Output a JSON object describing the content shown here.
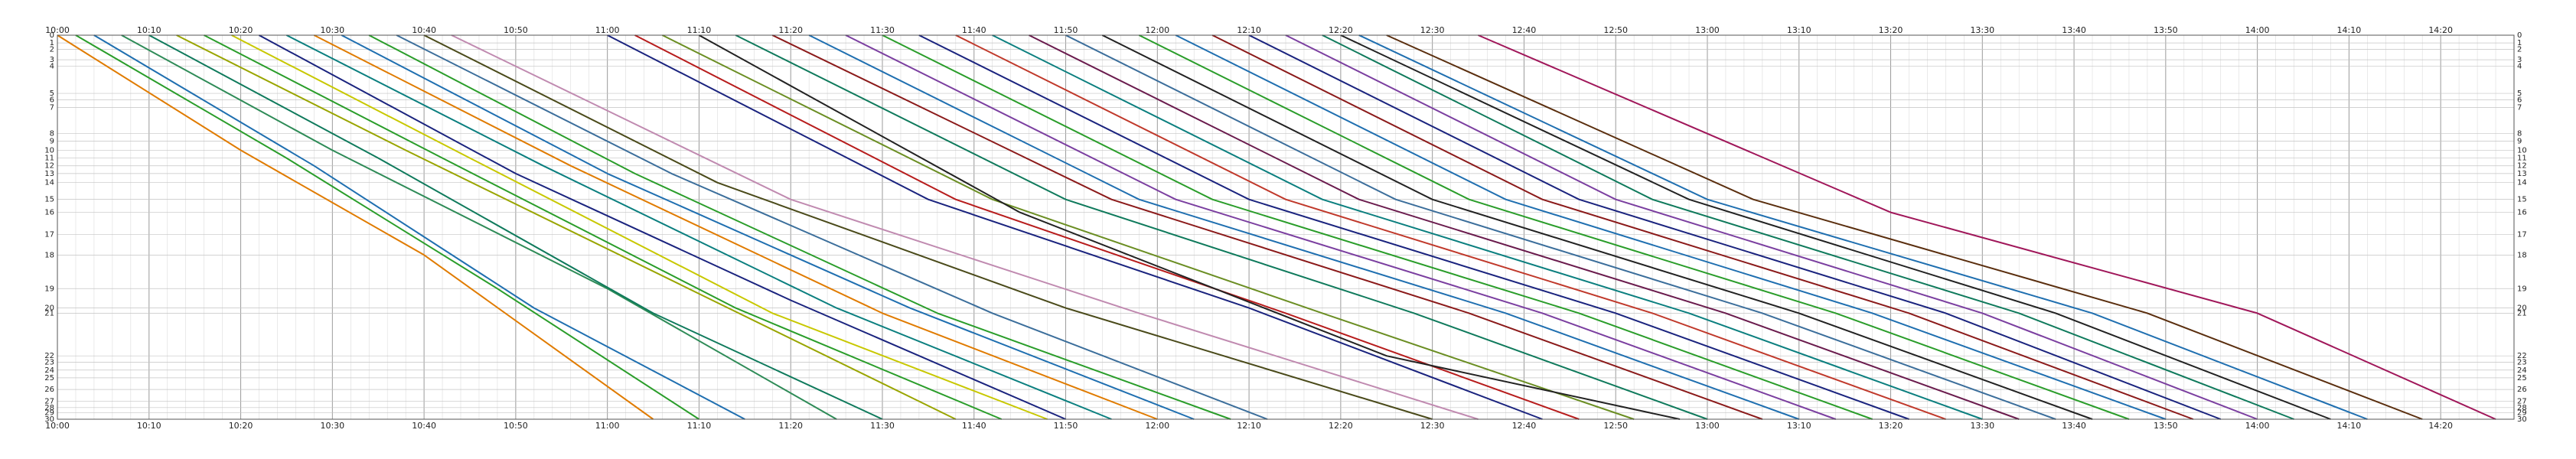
{
  "chart_data": {
    "type": "line",
    "title": "",
    "xlabel": "",
    "ylabel": "",
    "x_axis": {
      "kind": "time",
      "start": "10:00",
      "end": "14:28",
      "tick_labels": [
        "10:00",
        "10:10",
        "10:20",
        "10:30",
        "10:40",
        "10:50",
        "11:00",
        "11:10",
        "11:20",
        "11:30",
        "11:40",
        "11:50",
        "12:00",
        "12:10",
        "12:20",
        "12:30",
        "12:40",
        "12:50",
        "13:00",
        "13:10",
        "13:20",
        "13:30",
        "13:40",
        "13:50",
        "14:00",
        "14:10",
        "14:20"
      ],
      "minor_grid_minutes": 2
    },
    "y_axis": {
      "kind": "station",
      "start_km": 0,
      "end_km": 29.7,
      "inverted": true,
      "station_numbers": [
        0,
        1,
        2,
        3,
        4,
        5,
        6,
        7,
        8,
        9,
        10,
        11,
        12,
        13,
        14,
        15,
        16,
        17,
        18,
        19,
        20,
        21,
        22,
        23,
        24,
        25,
        26,
        27,
        28,
        29,
        30
      ],
      "station_km": [
        0,
        0.6,
        1.1,
        1.9,
        2.4,
        4.5,
        5.0,
        5.6,
        7.6,
        8.2,
        8.9,
        9.5,
        10.1,
        10.7,
        11.4,
        12.7,
        13.7,
        15.4,
        17.0,
        19.6,
        21.1,
        21.5,
        24.8,
        25.3,
        25.9,
        26.5,
        27.4,
        28.3,
        28.8,
        29.2,
        29.7
      ]
    },
    "grid": true,
    "legend": "none",
    "series": [
      {
        "color": "#e07b00",
        "points": [
          [
            "10:00",
            0
          ],
          [
            "10:20",
            8.9
          ],
          [
            "10:40",
            17.0
          ],
          [
            "11:05",
            29.7
          ]
        ]
      },
      {
        "color": "#2a9d2a",
        "points": [
          [
            "10:02",
            0
          ],
          [
            "10:25",
            9.5
          ],
          [
            "10:48",
            19.6
          ],
          [
            "11:10",
            29.7
          ]
        ]
      },
      {
        "color": "#1f6fb0",
        "points": [
          [
            "10:04",
            0
          ],
          [
            "10:28",
            10.1
          ],
          [
            "10:52",
            21.1
          ],
          [
            "11:15",
            29.7
          ]
        ]
      },
      {
        "color": "#2e8b57",
        "points": [
          [
            "10:07",
            0
          ],
          [
            "10:30",
            8.9
          ],
          [
            "11:00",
            19.6
          ],
          [
            "11:25",
            29.7
          ]
        ]
      },
      {
        "color": "#0f7a5c",
        "points": [
          [
            "10:10",
            0
          ],
          [
            "10:35",
            9.5
          ],
          [
            "11:05",
            21.5
          ],
          [
            "11:30",
            29.7
          ]
        ]
      },
      {
        "color": "#99a500",
        "points": [
          [
            "10:13",
            0
          ],
          [
            "10:38",
            8.9
          ],
          [
            "11:10",
            20.0
          ],
          [
            "11:38",
            29.7
          ]
        ]
      },
      {
        "color": "#2a9d2a",
        "points": [
          [
            "10:16",
            0
          ],
          [
            "10:42",
            9.5
          ],
          [
            "11:14",
            21.1
          ],
          [
            "11:43",
            29.7
          ]
        ]
      },
      {
        "color": "#c8c800",
        "points": [
          [
            "10:19",
            0
          ],
          [
            "10:45",
            9.5
          ],
          [
            "11:18",
            21.5
          ],
          [
            "11:48",
            29.7
          ]
        ]
      },
      {
        "color": "#1a237e",
        "points": [
          [
            "10:22",
            0
          ],
          [
            "10:50",
            10.7
          ],
          [
            "11:20",
            20.5
          ],
          [
            "11:50",
            29.7
          ]
        ]
      },
      {
        "color": "#0b7f7f",
        "points": [
          [
            "10:25",
            0
          ],
          [
            "10:53",
            10.1
          ],
          [
            "11:25",
            21.1
          ],
          [
            "11:55",
            29.7
          ]
        ]
      },
      {
        "color": "#e07b00",
        "points": [
          [
            "10:28",
            0
          ],
          [
            "10:56",
            10.1
          ],
          [
            "11:30",
            21.5
          ],
          [
            "12:00",
            29.7
          ]
        ]
      },
      {
        "color": "#1f6fb0",
        "points": [
          [
            "10:31",
            0
          ],
          [
            "11:00",
            10.7
          ],
          [
            "11:33",
            21.1
          ],
          [
            "12:04",
            29.7
          ]
        ]
      },
      {
        "color": "#2a9d2a",
        "points": [
          [
            "10:34",
            0
          ],
          [
            "11:03",
            10.7
          ],
          [
            "11:36",
            21.5
          ],
          [
            "12:08",
            29.7
          ]
        ]
      },
      {
        "color": "#3b6e9b",
        "points": [
          [
            "10:37",
            0
          ],
          [
            "11:07",
            10.7
          ],
          [
            "11:42",
            21.5
          ],
          [
            "12:12",
            29.7
          ]
        ]
      },
      {
        "color": "#4a4a1a",
        "points": [
          [
            "10:40",
            0
          ],
          [
            "11:12",
            11.4
          ],
          [
            "11:50",
            21.1
          ],
          [
            "12:30",
            29.7
          ]
        ]
      },
      {
        "color": "#c08ab0",
        "points": [
          [
            "10:43",
            0
          ],
          [
            "11:20",
            12.7
          ],
          [
            "11:58",
            21.5
          ],
          [
            "12:35",
            29.7
          ]
        ]
      },
      {
        "color": "#1a237e",
        "points": [
          [
            "11:00",
            0
          ],
          [
            "11:35",
            12.7
          ],
          [
            "12:10",
            21.1
          ],
          [
            "12:42",
            29.7
          ]
        ]
      },
      {
        "color": "#b71c1c",
        "points": [
          [
            "11:03",
            0
          ],
          [
            "11:38",
            12.7
          ],
          [
            "12:14",
            21.5
          ],
          [
            "12:46",
            29.7
          ]
        ]
      },
      {
        "color": "#6b8e23",
        "points": [
          [
            "11:06",
            0
          ],
          [
            "11:42",
            12.7
          ],
          [
            "12:18",
            21.5
          ],
          [
            "12:52",
            29.7
          ]
        ]
      },
      {
        "color": "#222222",
        "points": [
          [
            "11:10",
            0
          ],
          [
            "11:45",
            13.7
          ],
          [
            "12:25",
            24.8
          ],
          [
            "12:57",
            29.7
          ]
        ]
      },
      {
        "color": "#0f7a5c",
        "points": [
          [
            "11:14",
            0
          ],
          [
            "11:50",
            12.7
          ],
          [
            "12:28",
            21.5
          ],
          [
            "13:00",
            29.7
          ]
        ]
      },
      {
        "color": "#8b1a1a",
        "points": [
          [
            "11:18",
            0
          ],
          [
            "11:55",
            12.7
          ],
          [
            "12:34",
            21.5
          ],
          [
            "13:06",
            29.7
          ]
        ]
      },
      {
        "color": "#1f6fb0",
        "points": [
          [
            "11:22",
            0
          ],
          [
            "11:58",
            12.7
          ],
          [
            "12:38",
            21.5
          ],
          [
            "13:10",
            29.7
          ]
        ]
      },
      {
        "color": "#7b3fa0",
        "points": [
          [
            "11:26",
            0
          ],
          [
            "12:02",
            12.7
          ],
          [
            "12:42",
            21.5
          ],
          [
            "13:14",
            29.7
          ]
        ]
      },
      {
        "color": "#2a9d2a",
        "points": [
          [
            "11:30",
            0
          ],
          [
            "12:06",
            12.7
          ],
          [
            "12:46",
            21.5
          ],
          [
            "13:18",
            29.7
          ]
        ]
      },
      {
        "color": "#1a237e",
        "points": [
          [
            "11:34",
            0
          ],
          [
            "12:10",
            12.7
          ],
          [
            "12:50",
            21.5
          ],
          [
            "13:22",
            29.7
          ]
        ]
      },
      {
        "color": "#c0392b",
        "points": [
          [
            "11:38",
            0
          ],
          [
            "12:14",
            12.7
          ],
          [
            "12:54",
            21.5
          ],
          [
            "13:26",
            29.7
          ]
        ]
      },
      {
        "color": "#0b7f7f",
        "points": [
          [
            "11:42",
            0
          ],
          [
            "12:18",
            12.7
          ],
          [
            "12:58",
            21.5
          ],
          [
            "13:30",
            29.7
          ]
        ]
      },
      {
        "color": "#6a1b4d",
        "points": [
          [
            "11:46",
            0
          ],
          [
            "12:22",
            12.7
          ],
          [
            "13:02",
            21.5
          ],
          [
            "13:34",
            29.7
          ]
        ]
      },
      {
        "color": "#3b6e9b",
        "points": [
          [
            "11:50",
            0
          ],
          [
            "12:26",
            12.7
          ],
          [
            "13:06",
            21.5
          ],
          [
            "13:38",
            29.7
          ]
        ]
      },
      {
        "color": "#222222",
        "points": [
          [
            "11:54",
            0
          ],
          [
            "12:30",
            12.7
          ],
          [
            "13:10",
            21.5
          ],
          [
            "13:42",
            29.7
          ]
        ]
      },
      {
        "color": "#2a9d2a",
        "points": [
          [
            "11:58",
            0
          ],
          [
            "12:34",
            12.7
          ],
          [
            "13:14",
            21.5
          ],
          [
            "13:46",
            29.7
          ]
        ]
      },
      {
        "color": "#1f6fb0",
        "points": [
          [
            "12:02",
            0
          ],
          [
            "12:38",
            12.7
          ],
          [
            "13:18",
            21.5
          ],
          [
            "13:50",
            29.7
          ]
        ]
      },
      {
        "color": "#8b1a1a",
        "points": [
          [
            "12:06",
            0
          ],
          [
            "12:42",
            12.7
          ],
          [
            "13:22",
            21.5
          ],
          [
            "13:53",
            29.7
          ]
        ]
      },
      {
        "color": "#1a237e",
        "points": [
          [
            "12:10",
            0
          ],
          [
            "12:46",
            12.7
          ],
          [
            "13:26",
            21.5
          ],
          [
            "13:56",
            29.7
          ]
        ]
      },
      {
        "color": "#7b3fa0",
        "points": [
          [
            "12:14",
            0
          ],
          [
            "12:50",
            12.7
          ],
          [
            "13:30",
            21.5
          ],
          [
            "14:00",
            29.7
          ]
        ]
      },
      {
        "color": "#0f7a5c",
        "points": [
          [
            "12:18",
            0
          ],
          [
            "12:54",
            12.7
          ],
          [
            "13:34",
            21.5
          ],
          [
            "14:04",
            29.7
          ]
        ]
      },
      {
        "color": "#222222",
        "points": [
          [
            "12:20",
            0
          ],
          [
            "12:58",
            12.7
          ],
          [
            "13:38",
            21.5
          ],
          [
            "14:08",
            29.7
          ]
        ]
      },
      {
        "color": "#1f6fb0",
        "points": [
          [
            "12:22",
            0
          ],
          [
            "13:00",
            12.7
          ],
          [
            "13:42",
            21.5
          ],
          [
            "14:12",
            29.7
          ]
        ]
      },
      {
        "color": "#5a2e0e",
        "points": [
          [
            "12:25",
            0
          ],
          [
            "13:05",
            12.7
          ],
          [
            "13:48",
            21.5
          ],
          [
            "14:18",
            29.7
          ]
        ]
      },
      {
        "color": "#a0175a",
        "points": [
          [
            "12:35",
            0
          ],
          [
            "13:20",
            13.7
          ],
          [
            "14:00",
            21.5
          ],
          [
            "14:26",
            29.7
          ]
        ]
      }
    ]
  }
}
